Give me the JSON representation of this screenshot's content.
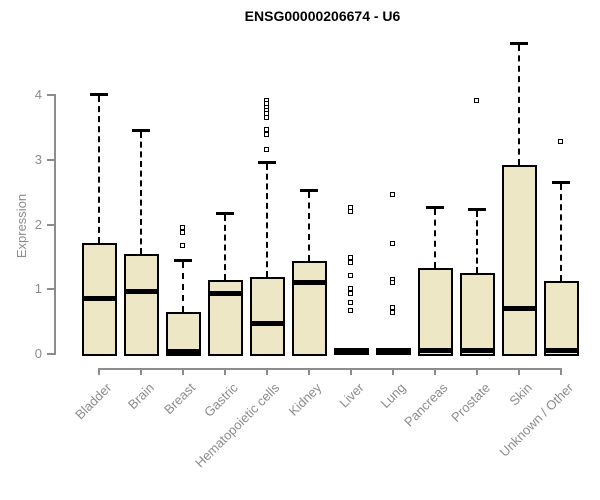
{
  "title": "ENSG00000206674 - U6",
  "chart_data": {
    "type": "boxplot",
    "title": "ENSG00000206674 - U6",
    "xlabel": "",
    "ylabel": "Expression",
    "ylim": [
      0,
      4
    ],
    "yticks": [
      0,
      1,
      2,
      3,
      4
    ],
    "grid": false,
    "legend": "none",
    "colors": {
      "box_fill": "#EDE7C6",
      "box_border": "#000000",
      "median": "#000000",
      "axis": "#8C8C8C",
      "title": "#000000",
      "background": "#FFFFFF"
    },
    "categories": [
      "Bladder",
      "Brain",
      "Breast",
      "Gastric",
      "Hematopoietic cells",
      "Kidney",
      "Liver",
      "Lung",
      "Pancreas",
      "Prostate",
      "Skin",
      "Unknown / Other"
    ],
    "series": [
      {
        "category": "Bladder",
        "whisker_low": 0,
        "q1": 0,
        "median": 0.85,
        "q3": 1.72,
        "whisker_high": 4.02,
        "outliers": []
      },
      {
        "category": "Brain",
        "whisker_low": 0,
        "q1": 0,
        "median": 0.95,
        "q3": 1.55,
        "whisker_high": 3.46,
        "outliers": []
      },
      {
        "category": "Breast",
        "whisker_low": 0,
        "q1": 0,
        "median": 0.03,
        "q3": 0.65,
        "whisker_high": 1.45,
        "outliers": [
          1.95,
          1.87,
          1.67
        ]
      },
      {
        "category": "Gastric",
        "whisker_low": 0,
        "q1": 0,
        "median": 0.92,
        "q3": 1.15,
        "whisker_high": 2.18,
        "outliers": []
      },
      {
        "category": "Hematopoietic cells",
        "whisker_low": 0,
        "q1": 0,
        "median": 0.47,
        "q3": 1.19,
        "whisker_high": 2.96,
        "outliers": [
          3.91,
          3.86,
          3.8,
          3.75,
          3.7,
          3.64,
          3.46,
          3.38,
          3.15
        ]
      },
      {
        "category": "Kidney",
        "whisker_low": 0,
        "q1": 0,
        "median": 1.09,
        "q3": 1.44,
        "whisker_high": 2.54,
        "outliers": []
      },
      {
        "category": "Liver",
        "whisker_low": 0,
        "q1": 0,
        "median": 0.02,
        "q3": 0.03,
        "whisker_high": 0.03,
        "outliers": [
          2.25,
          2.2,
          1.49,
          1.41,
          1.21,
          1.01,
          0.92,
          0.79,
          0.67
        ]
      },
      {
        "category": "Lung",
        "whisker_low": 0,
        "q1": 0,
        "median": 0.02,
        "q3": 0.03,
        "whisker_high": 0.03,
        "outliers": [
          2.45,
          1.7,
          1.15,
          1.1,
          0.71,
          0.63
        ]
      },
      {
        "category": "Pancreas",
        "whisker_low": 0,
        "q1": 0,
        "median": 0.04,
        "q3": 1.33,
        "whisker_high": 2.27,
        "outliers": []
      },
      {
        "category": "Prostate",
        "whisker_low": 0,
        "q1": 0,
        "median": 0.04,
        "q3": 1.25,
        "whisker_high": 2.24,
        "outliers": [
          3.91
        ]
      },
      {
        "category": "Skin",
        "whisker_low": 0,
        "q1": 0,
        "median": 0.7,
        "q3": 2.92,
        "whisker_high": 4.81,
        "outliers": []
      },
      {
        "category": "Unknown / Other",
        "whisker_low": 0,
        "q1": 0,
        "median": 0.04,
        "q3": 1.13,
        "whisker_high": 2.66,
        "outliers": [
          3.28
        ]
      }
    ]
  }
}
